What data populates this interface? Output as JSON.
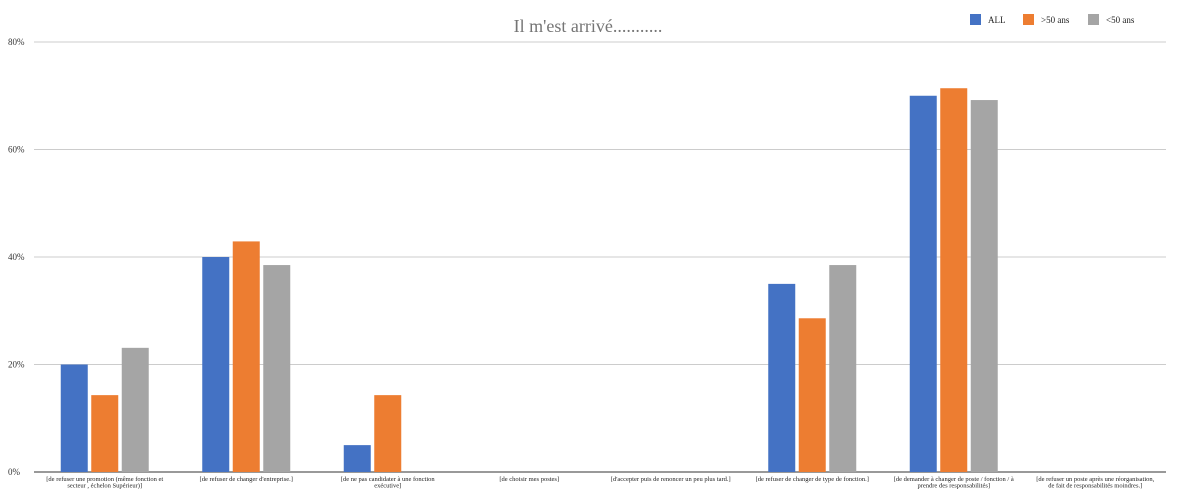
{
  "chart_data": {
    "type": "bar",
    "title": "Il m'est arrivé...........",
    "xlabel": "",
    "ylabel": "",
    "ylim": [
      0,
      80
    ],
    "yticks": [
      0,
      20,
      40,
      60,
      80
    ],
    "ytick_labels": [
      "0%",
      "20%",
      "40%",
      "60%",
      "80%"
    ],
    "grid": true,
    "legend_position": "top-right",
    "categories": [
      [
        "[de refuser une promotion (même fonction et",
        "secteur , échelon Supérieur)]"
      ],
      [
        "[de refuser de changer d'entreprise.]"
      ],
      [
        "[de ne pas candidater à une fonction",
        "exécutive]"
      ],
      [
        "[de choisir mes postes]"
      ],
      [
        "[d'accepter puis de renoncer un peu plus tard.]"
      ],
      [
        "[de refuser de changer de type de fonction.]"
      ],
      [
        "[de demander à changer de poste / fonction / à",
        "prendre des responsabilités]"
      ],
      [
        "[de refuser un poste après une réorganisation,",
        "de fait de responsabilités moindres.]"
      ]
    ],
    "series": [
      {
        "name": "ALL",
        "color": "#4472c4",
        "values": [
          20,
          40,
          5,
          0,
          0,
          35,
          70,
          0
        ]
      },
      {
        "name": ">50 ans",
        "color": "#ed7d31",
        "values": [
          14.3,
          42.9,
          14.3,
          0,
          0,
          28.6,
          71.4,
          0
        ]
      },
      {
        "name": "<50 ans",
        "color": "#a5a5a5",
        "values": [
          23.1,
          38.5,
          0,
          0,
          0,
          38.5,
          69.2,
          0
        ]
      }
    ]
  }
}
